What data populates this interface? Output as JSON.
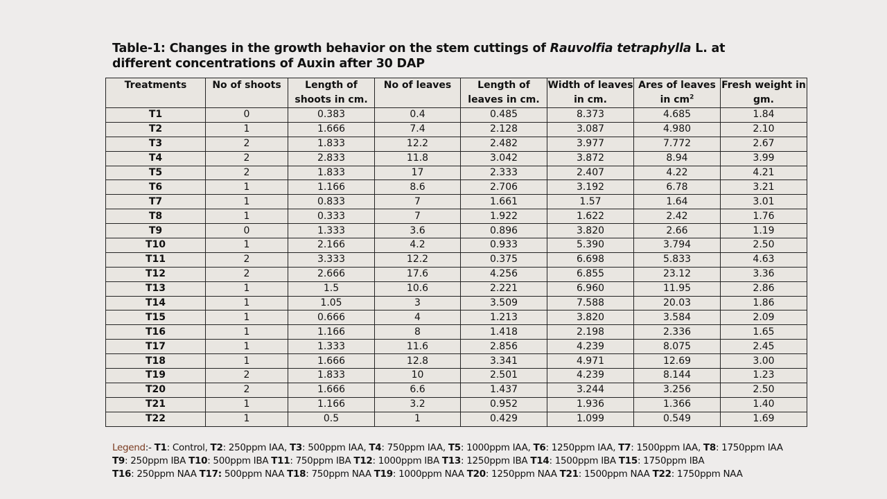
{
  "title": {
    "prefix": "Table-1: Changes in the growth behavior on the stem cuttings of ",
    "species": "Rauvolfia tetraphylla",
    "suffix": " L. at different concentrations of Auxin after 30 DAP"
  },
  "table": {
    "headers": {
      "treatments": "Treatments",
      "shoots": "No of shoots",
      "shoot_length": "Length of shoots in cm.",
      "leaves": "No of leaves",
      "leaf_length": "Length of leaves in cm.",
      "leaf_width": "Width of leaves in cm.",
      "leaf_area": "Ares of leaves in cm",
      "leaf_area_sup": "2",
      "fresh_weight": "Fresh weight in gm."
    },
    "rows": [
      [
        "T1",
        "0",
        "0.383",
        "0.4",
        "0.485",
        "8.373",
        "4.685",
        "1.84"
      ],
      [
        "T2",
        "1",
        "1.666",
        "7.4",
        "2.128",
        "3.087",
        "4.980",
        "2.10"
      ],
      [
        "T3",
        "2",
        "1.833",
        "12.2",
        "2.482",
        "3.977",
        "7.772",
        "2.67"
      ],
      [
        "T4",
        "2",
        "2.833",
        "11.8",
        "3.042",
        "3.872",
        "8.94",
        "3.99"
      ],
      [
        "T5",
        "2",
        "1.833",
        "17",
        "2.333",
        "2.407",
        "4.22",
        "4.21"
      ],
      [
        "T6",
        "1",
        "1.166",
        "8.6",
        "2.706",
        "3.192",
        "6.78",
        "3.21"
      ],
      [
        "T7",
        "1",
        "0.833",
        "7",
        "1.661",
        "1.57",
        "1.64",
        "3.01"
      ],
      [
        "T8",
        "1",
        "0.333",
        "7",
        "1.922",
        "1.622",
        "2.42",
        "1.76"
      ],
      [
        "T9",
        "0",
        "1.333",
        "3.6",
        "0.896",
        "3.820",
        "2.66",
        "1.19"
      ],
      [
        "T10",
        "1",
        "2.166",
        "4.2",
        "0.933",
        "5.390",
        "3.794",
        "2.50"
      ],
      [
        "T11",
        "2",
        "3.333",
        "12.2",
        "0.375",
        "6.698",
        "5.833",
        "4.63"
      ],
      [
        "T12",
        "2",
        "2.666",
        "17.6",
        "4.256",
        "6.855",
        "23.12",
        "3.36"
      ],
      [
        "T13",
        "1",
        "1.5",
        "10.6",
        "2.221",
        "6.960",
        "11.95",
        "2.86"
      ],
      [
        "T14",
        "1",
        "1.05",
        "3",
        "3.509",
        "7.588",
        "20.03",
        "1.86"
      ],
      [
        "T15",
        "1",
        "0.666",
        "4",
        "1.213",
        "3.820",
        "3.584",
        "2.09"
      ],
      [
        "T16",
        "1",
        "1.166",
        "8",
        "1.418",
        "2.198",
        "2.336",
        "1.65"
      ],
      [
        "T17",
        "1",
        "1.333",
        "11.6",
        "2.856",
        "4.239",
        "8.075",
        "2.45"
      ],
      [
        "T18",
        "1",
        "1.666",
        "12.8",
        "3.341",
        "4.971",
        "12.69",
        "3.00"
      ],
      [
        "T19",
        "2",
        "1.833",
        "10",
        "2.501",
        "4.239",
        "8.144",
        "1.23"
      ],
      [
        "T20",
        "2",
        "1.666",
        "6.6",
        "1.437",
        "3.244",
        "3.256",
        "2.50"
      ],
      [
        "T21",
        "1",
        "1.166",
        "3.2",
        "0.952",
        "1.936",
        "1.366",
        "1.40"
      ],
      [
        "T22",
        "1",
        "0.5",
        "1",
        "0.429",
        "1.099",
        "0.549",
        "1.69"
      ]
    ]
  },
  "legend": {
    "label": "Legend",
    "lines": [
      [
        [
          ":- ",
          false
        ],
        [
          "T1",
          true
        ],
        [
          ": Control, ",
          false
        ],
        [
          "T2",
          true
        ],
        [
          ": 250ppm IAA, ",
          false
        ],
        [
          "T3",
          true
        ],
        [
          ": 500ppm IAA, ",
          false
        ],
        [
          "T4",
          true
        ],
        [
          ": 750ppm IAA, ",
          false
        ],
        [
          "T5",
          true
        ],
        [
          ": 1000ppm IAA, ",
          false
        ],
        [
          "T6",
          true
        ],
        [
          ": 1250ppm IAA, ",
          false
        ],
        [
          "T7",
          true
        ],
        [
          ": 1500ppm IAA, ",
          false
        ],
        [
          "T8",
          true
        ],
        [
          ": 1750ppm IAA",
          false
        ]
      ],
      [
        [
          "T9",
          true
        ],
        [
          ": 250ppm IBA ",
          false
        ],
        [
          "T10",
          true
        ],
        [
          ": 500ppm IBA ",
          false
        ],
        [
          "T11",
          true
        ],
        [
          ": 750ppm IBA ",
          false
        ],
        [
          "T12",
          true
        ],
        [
          ": 1000ppm IBA ",
          false
        ],
        [
          "T13",
          true
        ],
        [
          ": 1250ppm IBA ",
          false
        ],
        [
          "T14",
          true
        ],
        [
          ": 1500ppm IBA ",
          false
        ],
        [
          "T15",
          true
        ],
        [
          ": 1750ppm IBA",
          false
        ]
      ],
      [
        [
          "T16",
          true
        ],
        [
          ": 250ppm NAA ",
          false
        ],
        [
          "T17:",
          true
        ],
        [
          " 500ppm NAA ",
          false
        ],
        [
          "T18",
          true
        ],
        [
          ": 750ppm NAA ",
          false
        ],
        [
          "T19",
          true
        ],
        [
          ": 1000ppm NAA ",
          false
        ],
        [
          "T20",
          true
        ],
        [
          ": 1250ppm NAA  ",
          false
        ],
        [
          "T21",
          true
        ],
        [
          ": 1500ppm NAA ",
          false
        ],
        [
          "T22",
          true
        ],
        [
          ": 1750ppm NAA",
          false
        ]
      ]
    ]
  }
}
